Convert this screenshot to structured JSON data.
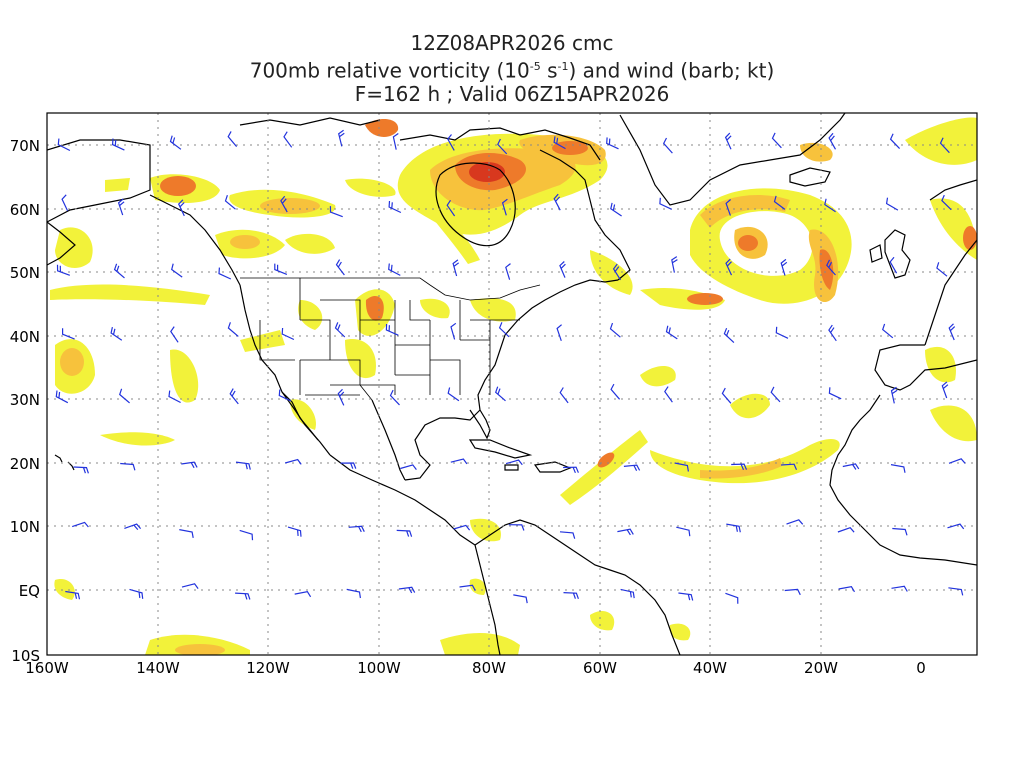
{
  "title": {
    "line1": "12Z08APR2026 cmc",
    "line2_prefix": "700mb relative vorticity (10",
    "line2_exp1": "-5",
    "line2_mid": " s",
    "line2_exp2": "-1",
    "line2_suffix": ") and wind (barb; kt)",
    "line3": "F=162 h ; Valid 06Z15APR2026"
  },
  "axes": {
    "lat_labels": [
      "70N",
      "60N",
      "50N",
      "40N",
      "30N",
      "20N",
      "10N",
      "EQ",
      "10S"
    ],
    "lon_labels": [
      "160W",
      "140W",
      "120W",
      "100W",
      "80W",
      "60W",
      "40W",
      "20W",
      "0"
    ]
  },
  "colors": {
    "shade_low": "#f2f23a",
    "shade_mid": "#f7c23c",
    "shade_high": "#ee7a2a",
    "shade_peak": "#d8381e",
    "barb": "#2233dd",
    "coast": "#000000",
    "grid": "#888888"
  }
}
